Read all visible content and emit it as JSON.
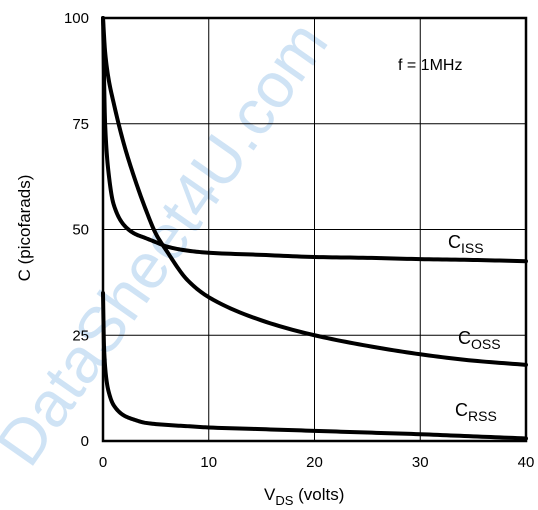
{
  "watermark": "DataSheet4U.com",
  "chart_data": {
    "type": "line",
    "xlabel": {
      "main": "V",
      "sub": "DS",
      "rest": " (volts)"
    },
    "ylabel": "C (picofarads)",
    "xlim": [
      0,
      40
    ],
    "ylim": [
      0,
      100
    ],
    "xticks": [
      0,
      10,
      20,
      30,
      40
    ],
    "xticklabels": [
      "0",
      "10",
      "20",
      "30",
      "40"
    ],
    "yticks": [
      0,
      25,
      50,
      75,
      100
    ],
    "yticklabels": [
      "0",
      "25",
      "50",
      "75",
      "100"
    ],
    "grid": true,
    "annotation": "f = 1MHz",
    "series": [
      {
        "name": "CISS",
        "label_main": "C",
        "label_sub": "ISS",
        "x": [
          0,
          0.2,
          0.5,
          1,
          2,
          3,
          4,
          5,
          6,
          8,
          10,
          15,
          20,
          25,
          30,
          35,
          40
        ],
        "y": [
          100,
          75,
          64,
          56,
          51,
          49,
          48,
          47,
          46,
          45,
          44.5,
          44,
          43.5,
          43.3,
          43,
          42.8,
          42.5
        ]
      },
      {
        "name": "COSS",
        "label_main": "C",
        "label_sub": "OSS",
        "x": [
          0,
          0.2,
          0.5,
          1,
          2,
          3,
          4,
          5,
          6,
          8,
          10,
          15,
          20,
          25,
          30,
          35,
          40
        ],
        "y": [
          100,
          92,
          86,
          80,
          70,
          62,
          55,
          49,
          45,
          38,
          34,
          28.5,
          25,
          22.5,
          20.5,
          19,
          18
        ]
      },
      {
        "name": "CRSS",
        "label_main": "C",
        "label_sub": "RSS",
        "x": [
          0,
          0.1,
          0.3,
          0.5,
          1,
          2,
          3,
          4,
          6,
          8,
          10,
          15,
          20,
          25,
          30,
          35,
          40
        ],
        "y": [
          35,
          22,
          15,
          12,
          8.5,
          6,
          5,
          4.3,
          3.8,
          3.5,
          3.2,
          2.8,
          2.4,
          2,
          1.6,
          1.1,
          0.6
        ]
      }
    ]
  }
}
